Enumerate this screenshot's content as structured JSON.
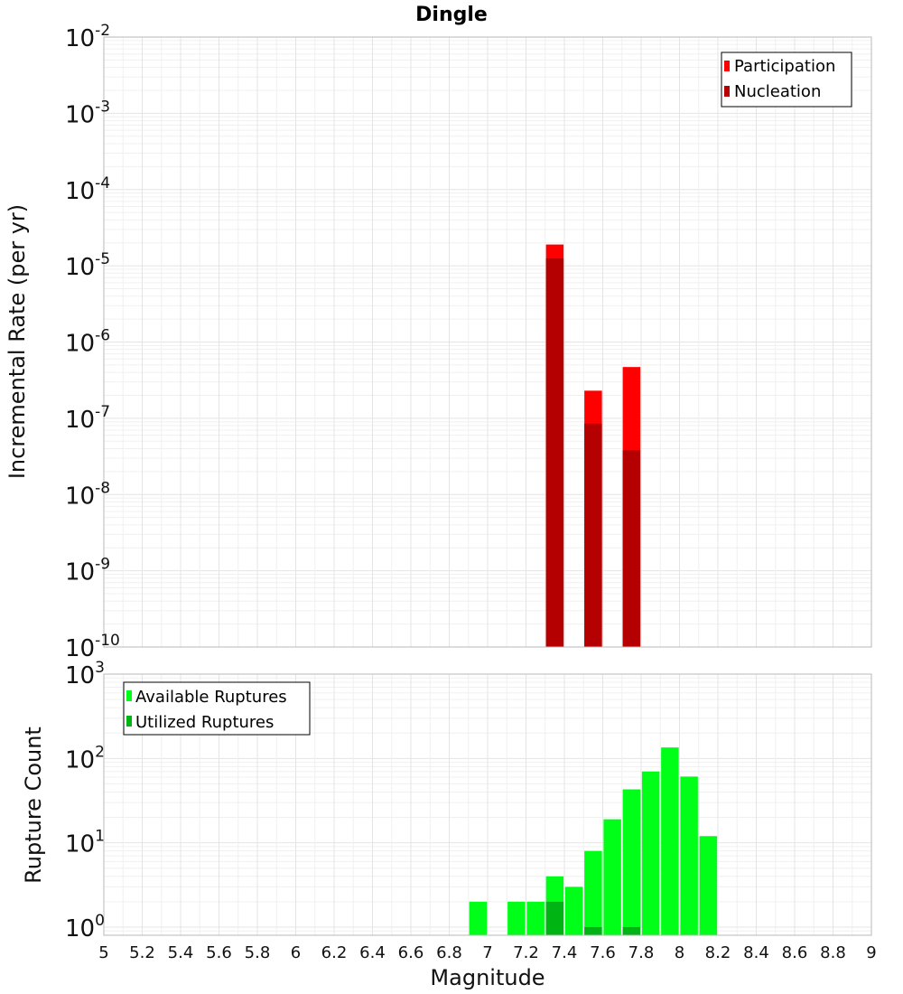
{
  "title": "Dingle",
  "colors": {
    "participation": "#ff0000",
    "nucleation": "#b40000",
    "available": "#00ff18",
    "utilized": "#00b414",
    "frame": "#b8b8b8",
    "grid_major": "#e4e4e4",
    "grid_minor": "#f0f0f0"
  },
  "x_ticks": [
    "5",
    "5.2",
    "5.4",
    "5.6",
    "5.8",
    "6",
    "6.2",
    "6.4",
    "6.6",
    "6.8",
    "7",
    "7.2",
    "7.4",
    "7.6",
    "7.8",
    "8",
    "8.2",
    "8.4",
    "8.6",
    "8.8",
    "9"
  ],
  "chart_data": [
    {
      "type": "bar",
      "title": "Dingle",
      "xlabel": "Magnitude",
      "ylabel": "Incremental Rate (per yr)",
      "yscale": "log",
      "xlim": [
        5,
        9
      ],
      "ylim": [
        1e-10,
        0.01
      ],
      "y_tick_exponents": [
        "-2",
        "-3",
        "-4",
        "-5",
        "-6",
        "-7",
        "-8",
        "-9",
        "-10"
      ],
      "legend": {
        "position": "top-right",
        "entries": [
          "Participation",
          "Nucleation"
        ]
      },
      "x": [
        7.35,
        7.55,
        7.75
      ],
      "series": [
        {
          "name": "Participation",
          "values": [
            1.9e-05,
            2.3e-07,
            4.7e-07
          ]
        },
        {
          "name": "Nucleation",
          "values": [
            1.25e-05,
            8.5e-08,
            3.8e-08
          ]
        }
      ]
    },
    {
      "type": "bar",
      "xlabel": "Magnitude",
      "ylabel": "Rupture Count",
      "yscale": "log",
      "xlim": [
        5,
        9
      ],
      "ylim": [
        0.8,
        1000
      ],
      "y_tick_exponents": [
        "3",
        "2",
        "1",
        "0"
      ],
      "legend": {
        "position": "top-left",
        "entries": [
          "Available Ruptures",
          "Utilized Ruptures"
        ]
      },
      "x": [
        6.95,
        7.15,
        7.25,
        7.35,
        7.45,
        7.55,
        7.65,
        7.75,
        7.85,
        7.95,
        8.05,
        8.15
      ],
      "series": [
        {
          "name": "Available Ruptures",
          "values": [
            2,
            2,
            2,
            4,
            3,
            8,
            19,
            43,
            70,
            135,
            61,
            12
          ]
        },
        {
          "name": "Utilized Ruptures",
          "values": [
            0,
            0,
            0,
            2,
            0,
            1,
            0,
            1,
            0,
            0,
            0,
            0
          ]
        }
      ]
    }
  ]
}
